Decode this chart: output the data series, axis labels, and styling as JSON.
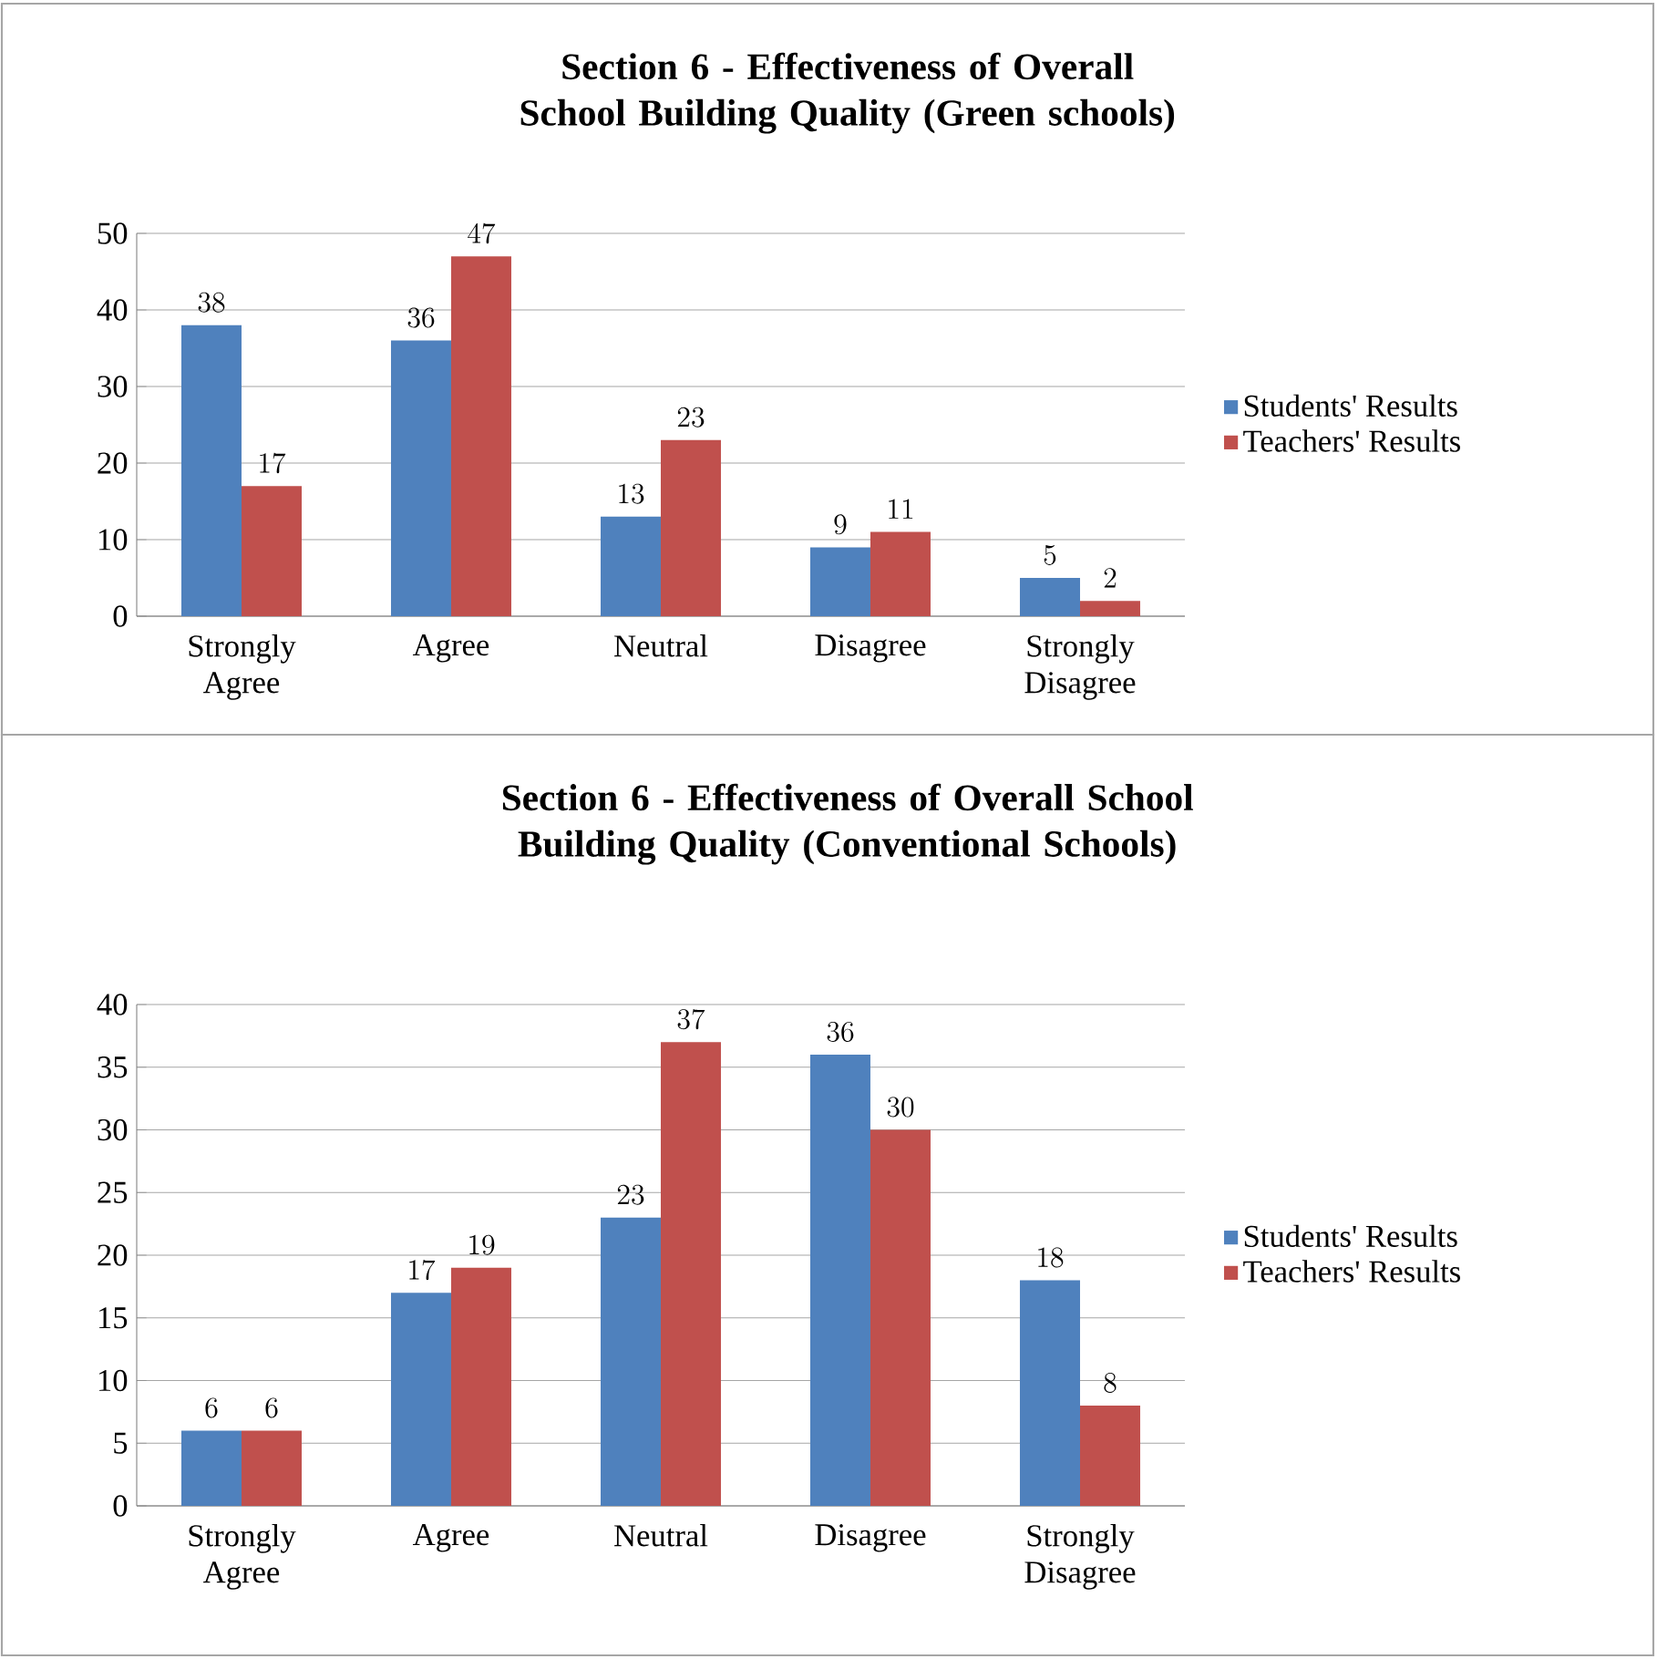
{
  "chart_data": [
    {
      "type": "bar",
      "title": "Section 6 - Effectiveness of Overall School Building Quality (Green schools)",
      "categories": [
        "Strongly Agree",
        "Agree",
        "Neutral",
        "Disagree",
        "Strongly Disagree"
      ],
      "series": [
        {
          "name": "Students' Results",
          "color": "#4f81bd",
          "values": [
            38,
            36,
            13,
            9,
            5
          ]
        },
        {
          "name": "Teachers' Results",
          "color": "#c0504d",
          "values": [
            17,
            47,
            23,
            11,
            2
          ]
        }
      ],
      "ylim": [
        0,
        50
      ],
      "yticks": [
        0,
        10,
        20,
        30,
        40,
        50
      ],
      "grid": "y",
      "legend": "right",
      "data_labels": true
    },
    {
      "type": "bar",
      "title": "Section 6 - Effectiveness of Overall School Building Quality (Conventional Schools)",
      "categories": [
        "Strongly Agree",
        "Agree",
        "Neutral",
        "Disagree",
        "Strongly Disagree"
      ],
      "series": [
        {
          "name": "Students' Results",
          "color": "#4f81bd",
          "values": [
            6,
            17,
            23,
            36,
            18
          ]
        },
        {
          "name": "Teachers' Results",
          "color": "#c0504d",
          "values": [
            6,
            19,
            37,
            30,
            8
          ]
        }
      ],
      "ylim": [
        0,
        40
      ],
      "yticks": [
        0,
        5,
        10,
        15,
        20,
        25,
        30,
        35,
        40
      ],
      "grid": "y",
      "legend": "right",
      "data_labels": true
    }
  ]
}
